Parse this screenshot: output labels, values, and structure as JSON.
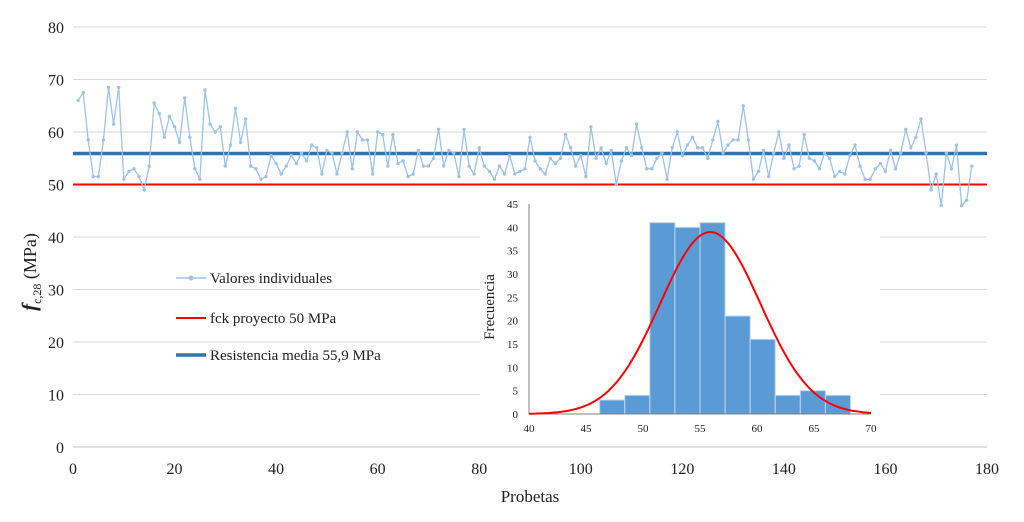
{
  "chart_data": [
    {
      "type": "line",
      "xlabel": "Probetas",
      "ylabel_main": "f",
      "ylabel_sub": "c,28",
      "ylabel_unit": " (MPa)",
      "xlim": [
        0,
        180
      ],
      "ylim": [
        0,
        80
      ],
      "x_ticks": [
        0,
        20,
        40,
        60,
        80,
        100,
        120,
        140,
        160,
        180
      ],
      "y_ticks": [
        0,
        10,
        20,
        30,
        40,
        50,
        60,
        70,
        80
      ],
      "grid": "horizontal",
      "colors": {
        "individual": "#9DC3E6",
        "fck": "#FF0000",
        "mean": "#2E75B6"
      },
      "series": [
        {
          "name": "Valores individuales",
          "values": [
            66,
            67.5,
            58.5,
            51.5,
            51.5,
            58.5,
            68.5,
            61.5,
            68.5,
            51,
            52.5,
            53,
            51.5,
            49,
            53.5,
            65.5,
            63.5,
            59,
            63,
            61,
            58,
            66.5,
            59,
            53,
            51,
            68,
            61.5,
            60,
            61,
            53.5,
            57.5,
            64.5,
            58,
            62.5,
            53.5,
            53,
            51,
            51.5,
            55.5,
            54,
            52,
            53.5,
            55.5,
            54,
            56,
            54.5,
            57.5,
            57,
            52,
            56.5,
            56,
            52,
            56,
            60,
            53,
            60,
            58.5,
            58.5,
            52,
            60,
            59.5,
            53.5,
            59.5,
            54,
            54.5,
            51.5,
            52,
            56.5,
            53.5,
            53.5,
            55,
            60.5,
            53.5,
            56.5,
            56,
            51.5,
            60.5,
            53.5,
            52,
            57,
            53.5,
            52.5,
            51,
            53.5,
            52,
            55.5,
            52,
            52.5,
            53,
            59,
            54.5,
            53,
            52,
            55,
            54,
            55,
            59.5,
            57,
            53.5,
            55.5,
            51.5,
            61,
            55,
            57,
            54,
            56.5,
            50,
            54.5,
            57,
            55.5,
            61.5,
            57,
            53,
            53,
            55,
            56,
            51,
            57,
            60,
            55.5,
            57.5,
            59,
            57,
            57,
            55,
            58.5,
            62,
            56,
            57.5,
            58.5,
            58.5,
            65,
            58.5,
            51,
            52.5,
            56.5,
            51.5,
            56,
            60,
            55,
            57.5,
            53,
            53.5,
            59.5,
            55,
            54.5,
            53,
            56,
            55,
            51.5,
            52.5,
            52,
            55.5,
            57.5,
            53.5,
            51,
            51,
            53,
            54,
            52.5,
            56.5,
            53,
            56,
            60.5,
            57,
            59,
            62.5,
            56,
            49,
            52,
            46,
            56,
            53,
            57.5,
            46,
            47,
            53.5
          ]
        },
        {
          "name": "fck proyecto 50 MPa",
          "value": 50
        },
        {
          "name": "Resistencia media 55,9 MPa",
          "value": 55.9
        }
      ],
      "legend": [
        "Valores individuales",
        "fck proyecto 50 MPa",
        "Resistencia media 55,9 MPa"
      ],
      "legend_placement": "left-center"
    },
    {
      "type": "bar",
      "subtype": "histogram",
      "ylabel": "Frecuencia",
      "xlim": [
        40,
        70
      ],
      "ylim": [
        0,
        45
      ],
      "x_ticks": [
        40,
        45,
        50,
        55,
        60,
        65,
        70
      ],
      "y_ticks": [
        0,
        5,
        10,
        15,
        20,
        25,
        30,
        35,
        40,
        45
      ],
      "bins": [
        {
          "from": 46.2,
          "to": 48.4,
          "value": 3
        },
        {
          "from": 48.4,
          "to": 50.6,
          "value": 4
        },
        {
          "from": 50.6,
          "to": 52.8,
          "value": 41
        },
        {
          "from": 52.8,
          "to": 55.0,
          "value": 40
        },
        {
          "from": 55.0,
          "to": 57.2,
          "value": 41
        },
        {
          "from": 57.2,
          "to": 59.4,
          "value": 21
        },
        {
          "from": 59.4,
          "to": 61.6,
          "value": 16
        },
        {
          "from": 61.6,
          "to": 63.8,
          "value": 4
        },
        {
          "from": 63.8,
          "to": 66.0,
          "value": 5
        },
        {
          "from": 66.0,
          "to": 68.2,
          "value": 4
        }
      ],
      "normal_curve": {
        "mean": 55.9,
        "peak": 39,
        "sd": 4.4
      },
      "colors": {
        "bar": "#5B9BD5",
        "bar_edge": "#BDD7EE",
        "curve": "#FF0000"
      }
    }
  ]
}
